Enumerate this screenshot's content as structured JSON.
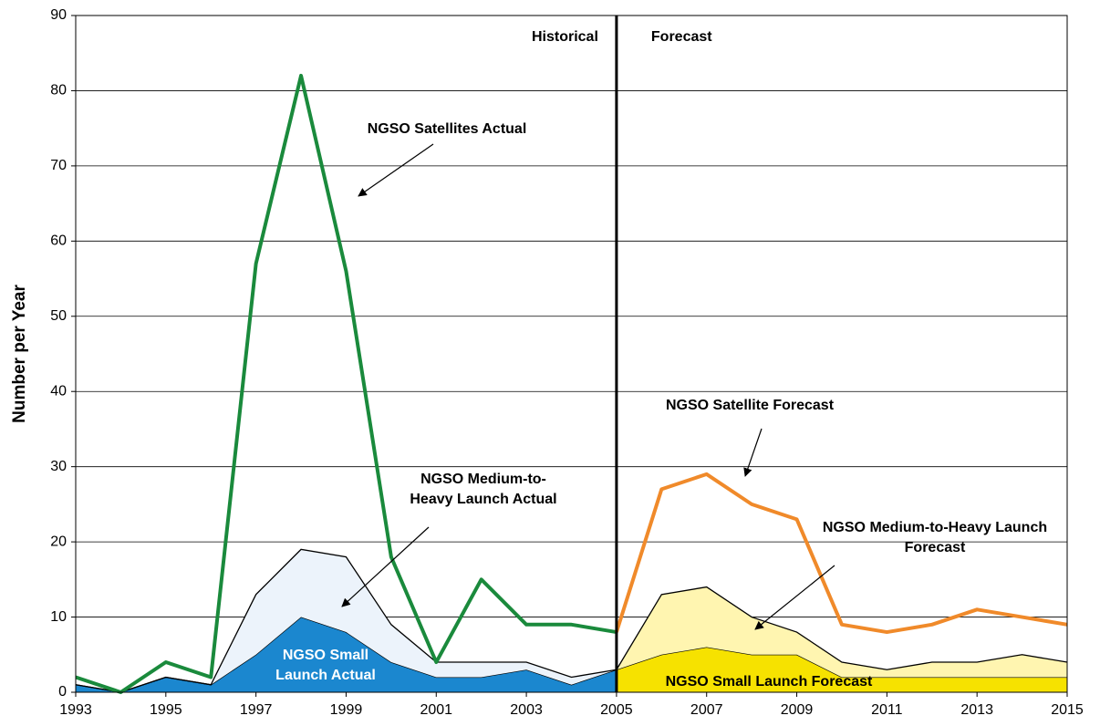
{
  "chart_data": {
    "type": "line",
    "y_label": "Number per Year",
    "xlim": [
      1993,
      2015
    ],
    "xticks": [
      1993,
      1995,
      1997,
      1999,
      2001,
      2003,
      2005,
      2007,
      2009,
      2011,
      2013,
      2015
    ],
    "ylim": [
      0,
      90
    ],
    "yticks": [
      0,
      10,
      20,
      30,
      40,
      50,
      60,
      70,
      80,
      90
    ],
    "grid": true,
    "divider": {
      "x": 2005,
      "left_label": "Historical",
      "right_label": "Forecast"
    },
    "series": [
      {
        "name": "NGSO Small Launch Actual",
        "type": "area",
        "stack": "historical",
        "color": "#1b87cf",
        "x": [
          1993,
          1994,
          1995,
          1996,
          1997,
          1998,
          1999,
          2000,
          2001,
          2002,
          2003,
          2004,
          2005
        ],
        "values": [
          1,
          0,
          2,
          1,
          5,
          10,
          8,
          4,
          2,
          2,
          3,
          1,
          3
        ]
      },
      {
        "name": "NGSO Medium-to-Heavy Launch Actual",
        "type": "area",
        "stack": "historical",
        "color": "#ecf3fb",
        "x": [
          1993,
          1994,
          1995,
          1996,
          1997,
          1998,
          1999,
          2000,
          2001,
          2002,
          2003,
          2004,
          2005
        ],
        "values": [
          0,
          0,
          0,
          0,
          8,
          9,
          10,
          5,
          2,
          2,
          1,
          1,
          0
        ]
      },
      {
        "name": "NGSO Small Launch Forecast",
        "type": "area",
        "stack": "forecast",
        "color": "#f6e200",
        "x": [
          2005,
          2006,
          2007,
          2008,
          2009,
          2010,
          2011,
          2012,
          2013,
          2014,
          2015
        ],
        "values": [
          3,
          5,
          6,
          5,
          5,
          2,
          2,
          2,
          2,
          2,
          2
        ]
      },
      {
        "name": "NGSO Medium-to-Heavy Launch Forecast",
        "type": "area",
        "stack": "forecast",
        "color": "#fff5b0",
        "x": [
          2005,
          2006,
          2007,
          2008,
          2009,
          2010,
          2011,
          2012,
          2013,
          2014,
          2015
        ],
        "values": [
          0,
          8,
          8,
          5,
          3,
          2,
          1,
          2,
          2,
          3,
          2
        ]
      },
      {
        "name": "NGSO Satellites Actual",
        "type": "line",
        "color": "#1a8a3c",
        "x": [
          1993,
          1994,
          1995,
          1996,
          1997,
          1998,
          1999,
          2000,
          2001,
          2002,
          2003,
          2004,
          2005
        ],
        "values": [
          2,
          0,
          4,
          2,
          57,
          82,
          56,
          18,
          4,
          15,
          9,
          9,
          8
        ]
      },
      {
        "name": "NGSO Satellite Forecast",
        "type": "line",
        "color": "#f08a2a",
        "x": [
          2005,
          2006,
          2007,
          2008,
          2009,
          2010,
          2011,
          2012,
          2013,
          2014,
          2015
        ],
        "values": [
          8,
          27,
          29,
          25,
          23,
          9,
          8,
          9,
          11,
          10,
          9
        ]
      }
    ]
  }
}
